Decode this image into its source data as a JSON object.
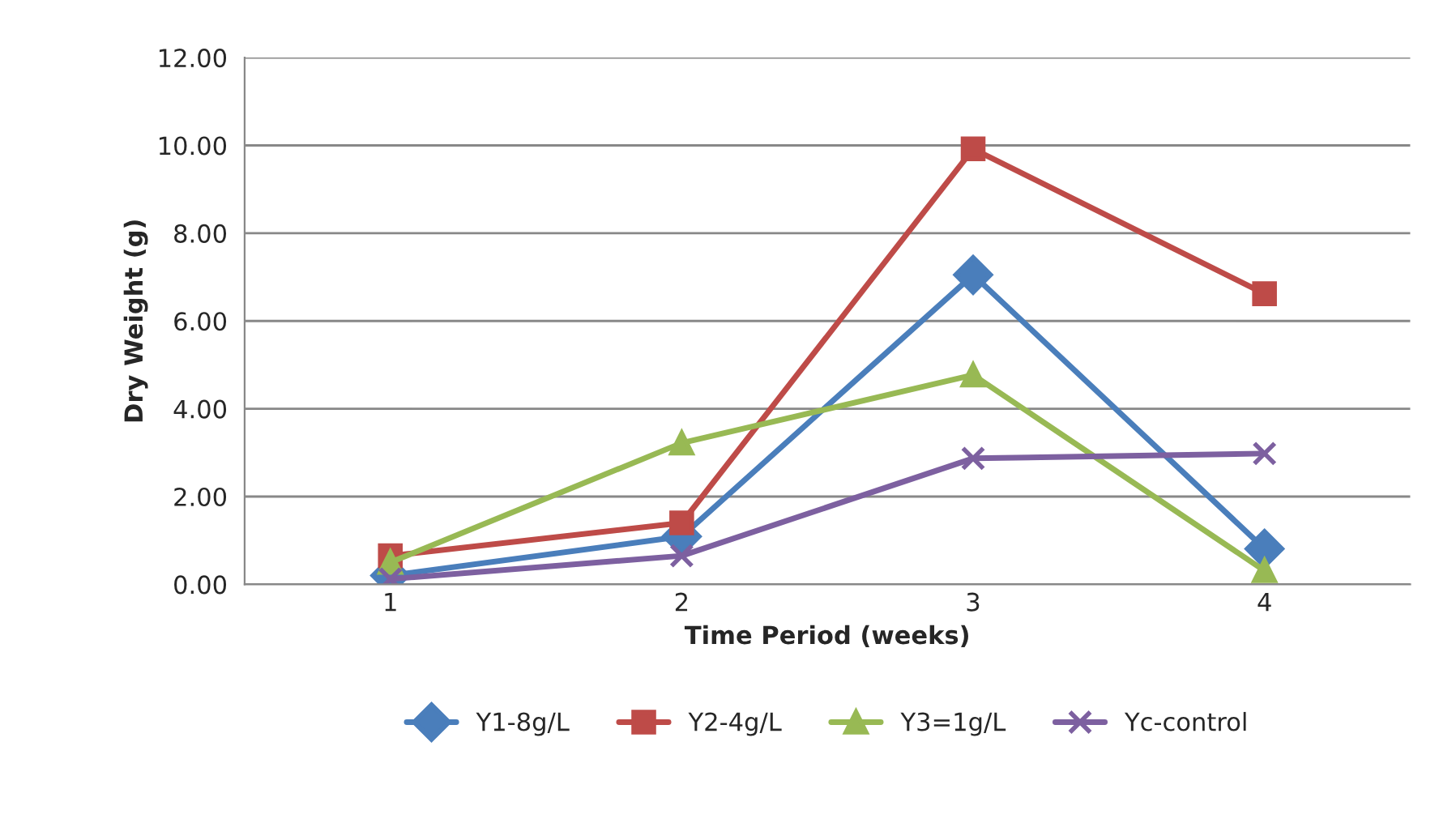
{
  "chart_data": {
    "type": "line",
    "xlabel": "Time Period (weeks)",
    "ylabel": "Dry Weight (g)",
    "categories": [
      "1",
      "2",
      "3",
      "4"
    ],
    "series": [
      {
        "name": "Y1-8g/L",
        "color": "#4a7ebb",
        "marker": "diamond",
        "values": [
          0.2,
          1.09,
          7.05,
          0.81
        ]
      },
      {
        "name": "Y2-4g/L",
        "color": "#be4b48",
        "marker": "square",
        "values": [
          0.65,
          1.4,
          9.92,
          6.62
        ]
      },
      {
        "name": "Y3=1g/L",
        "color": "#98b954",
        "marker": "triangle",
        "values": [
          0.5,
          3.22,
          4.77,
          0.31
        ]
      },
      {
        "name": "Yc-control",
        "color": "#7d60a0",
        "marker": "cross",
        "values": [
          0.12,
          0.65,
          2.87,
          2.98
        ]
      }
    ],
    "ylim": [
      0,
      12
    ],
    "yticks": [
      {
        "value": 0,
        "label": "0.00"
      },
      {
        "value": 2,
        "label": "2.00"
      },
      {
        "value": 4,
        "label": "4.00"
      },
      {
        "value": 6,
        "label": "6.00"
      },
      {
        "value": 8,
        "label": "8.00"
      },
      {
        "value": 10,
        "label": "10.00"
      },
      {
        "value": 12,
        "label": "12.00"
      }
    ],
    "grid": "y",
    "legend": "bottom",
    "line_style": "solid"
  }
}
